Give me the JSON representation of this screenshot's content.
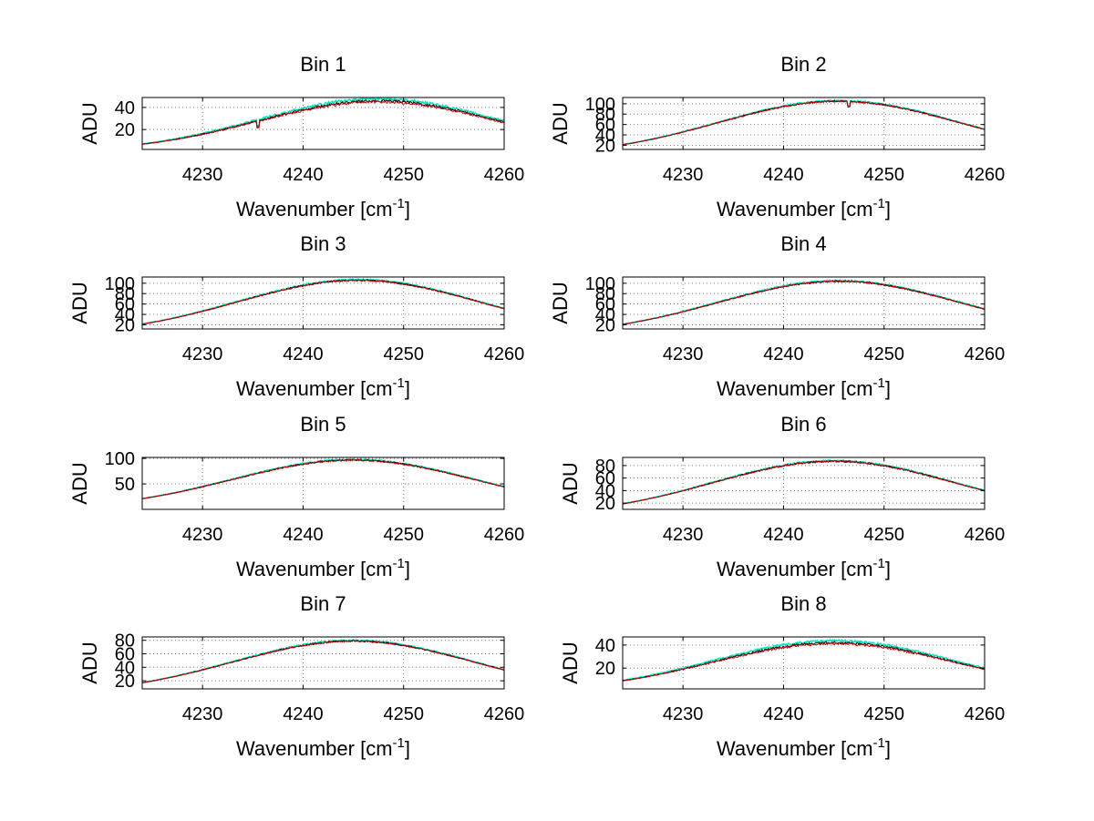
{
  "figure": {
    "background": "#ffffff",
    "grid_color": "#7f7f7f",
    "axis_color": "#000000"
  },
  "chart_data": [
    {
      "type": "line",
      "title": "Bin 1",
      "xlabel": "Wavenumber [cm",
      "xlabel_sup": "-1",
      "xlabel_close": "]",
      "ylabel": "ADU",
      "xlim": [
        4224,
        4260
      ],
      "ylim": [
        2,
        49
      ],
      "xticks": [
        4230,
        4240,
        4250,
        4260
      ],
      "yticks": [
        20,
        40
      ],
      "grid": true,
      "peak": 46,
      "center": 4247.5,
      "sigma": 12,
      "noise": 1.2,
      "dips": [
        {
          "x": 4235.5,
          "depth": 6
        }
      ],
      "series": [
        {
          "color": "#00e5c0",
          "scale": 1.04
        },
        {
          "color": "#000000",
          "scale": 1.0
        },
        {
          "color": "#cc0000",
          "scale": 0.98
        }
      ]
    },
    {
      "type": "line",
      "title": "Bin 2",
      "xlabel": "Wavenumber [cm",
      "xlabel_sup": "-1",
      "xlabel_close": "]",
      "ylabel": "ADU",
      "xlim": [
        4224,
        4260
      ],
      "ylim": [
        12,
        112
      ],
      "xticks": [
        4230,
        4240,
        4250,
        4260
      ],
      "yticks": [
        20,
        40,
        60,
        80,
        100
      ],
      "grid": true,
      "peak": 105,
      "center": 4245.5,
      "sigma": 12,
      "noise": 1.5,
      "dips": [
        {
          "x": 4246.5,
          "depth": 10
        }
      ],
      "series": [
        {
          "color": "#00e5c0",
          "scale": 1.01
        },
        {
          "color": "#000000",
          "scale": 1.0
        },
        {
          "color": "#cc0000",
          "scale": 0.995
        }
      ]
    },
    {
      "type": "line",
      "title": "Bin 3",
      "xlabel": "Wavenumber [cm",
      "xlabel_sup": "-1",
      "xlabel_close": "]",
      "ylabel": "ADU",
      "xlim": [
        4224,
        4260
      ],
      "ylim": [
        12,
        112
      ],
      "xticks": [
        4230,
        4240,
        4250,
        4260
      ],
      "yticks": [
        20,
        40,
        60,
        80,
        100
      ],
      "grid": true,
      "peak": 106,
      "center": 4245.5,
      "sigma": 12,
      "noise": 1.5,
      "dips": [],
      "series": [
        {
          "color": "#00e5c0",
          "scale": 1.01
        },
        {
          "color": "#000000",
          "scale": 1.0
        },
        {
          "color": "#cc0000",
          "scale": 0.995
        }
      ]
    },
    {
      "type": "line",
      "title": "Bin 4",
      "xlabel": "Wavenumber [cm",
      "xlabel_sup": "-1",
      "xlabel_close": "]",
      "ylabel": "ADU",
      "xlim": [
        4224,
        4260
      ],
      "ylim": [
        12,
        112
      ],
      "xticks": [
        4230,
        4240,
        4250,
        4260
      ],
      "yticks": [
        20,
        40,
        60,
        80,
        100
      ],
      "grid": true,
      "peak": 104,
      "center": 4245.5,
      "sigma": 12,
      "noise": 1.5,
      "dips": [],
      "series": [
        {
          "color": "#00e5c0",
          "scale": 1.01
        },
        {
          "color": "#000000",
          "scale": 1.0
        },
        {
          "color": "#cc0000",
          "scale": 0.995
        }
      ]
    },
    {
      "type": "line",
      "title": "Bin 5",
      "xlabel": "Wavenumber [cm",
      "xlabel_sup": "-1",
      "xlabel_close": "]",
      "ylabel": "ADU",
      "xlim": [
        4224,
        4260
      ],
      "ylim": [
        0,
        102
      ],
      "xticks": [
        4230,
        4240,
        4250,
        4260
      ],
      "yticks": [
        50,
        100
      ],
      "grid": true,
      "peak": 97,
      "center": 4245,
      "sigma": 12,
      "noise": 1.5,
      "dips": [],
      "series": [
        {
          "color": "#00e5c0",
          "scale": 1.01
        },
        {
          "color": "#000000",
          "scale": 1.0
        },
        {
          "color": "#cc0000",
          "scale": 0.995
        }
      ]
    },
    {
      "type": "line",
      "title": "Bin 6",
      "xlabel": "Wavenumber [cm",
      "xlabel_sup": "-1",
      "xlabel_close": "]",
      "ylabel": "ADU",
      "xlim": [
        4224,
        4260
      ],
      "ylim": [
        10,
        93
      ],
      "xticks": [
        4230,
        4240,
        4250,
        4260
      ],
      "yticks": [
        20,
        40,
        60,
        80
      ],
      "grid": true,
      "peak": 87,
      "center": 4245,
      "sigma": 12,
      "noise": 1.3,
      "dips": [],
      "series": [
        {
          "color": "#00e5c0",
          "scale": 1.01
        },
        {
          "color": "#000000",
          "scale": 1.0
        },
        {
          "color": "#cc0000",
          "scale": 0.995
        }
      ]
    },
    {
      "type": "line",
      "title": "Bin 7",
      "xlabel": "Wavenumber [cm",
      "xlabel_sup": "-1",
      "xlabel_close": "]",
      "ylabel": "ADU",
      "xlim": [
        4224,
        4260
      ],
      "ylim": [
        8,
        85
      ],
      "xticks": [
        4230,
        4240,
        4250,
        4260
      ],
      "yticks": [
        20,
        40,
        60,
        80
      ],
      "grid": true,
      "peak": 79,
      "center": 4245,
      "sigma": 12,
      "noise": 1.2,
      "dips": [],
      "series": [
        {
          "color": "#00e5c0",
          "scale": 1.01
        },
        {
          "color": "#000000",
          "scale": 1.0
        },
        {
          "color": "#cc0000",
          "scale": 0.995
        }
      ]
    },
    {
      "type": "line",
      "title": "Bin 8",
      "xlabel": "Wavenumber [cm",
      "xlabel_sup": "-1",
      "xlabel_close": "]",
      "ylabel": "ADU",
      "xlim": [
        4224,
        4260
      ],
      "ylim": [
        2,
        47
      ],
      "xticks": [
        4230,
        4240,
        4250,
        4260
      ],
      "yticks": [
        20,
        40
      ],
      "grid": true,
      "peak": 42,
      "center": 4245,
      "sigma": 12,
      "noise": 1.0,
      "dips": [],
      "series": [
        {
          "color": "#00e5c0",
          "scale": 1.04
        },
        {
          "color": "#000000",
          "scale": 1.0
        },
        {
          "color": "#cc0000",
          "scale": 0.98
        }
      ]
    }
  ]
}
